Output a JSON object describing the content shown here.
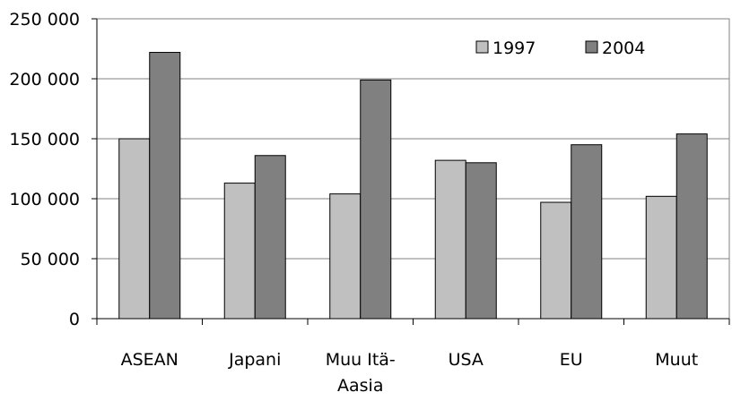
{
  "chart_data": {
    "type": "bar",
    "categories": [
      [
        "ASEAN"
      ],
      [
        "Japani"
      ],
      [
        "Muu Itä-",
        "Aasia"
      ],
      [
        "USA"
      ],
      [
        "EU"
      ],
      [
        "Muut"
      ]
    ],
    "series": [
      {
        "name": "1997",
        "values": [
          150000,
          113000,
          104000,
          132000,
          97000,
          102000
        ],
        "color": "#c0c0c0"
      },
      {
        "name": "2004",
        "values": [
          222000,
          136000,
          199000,
          130000,
          145000,
          154000
        ],
        "color": "#808080"
      }
    ],
    "yticks": [
      "0",
      "50 000",
      "100 000",
      "150 000",
      "200 000",
      "250 000"
    ],
    "ylim": [
      0,
      250000
    ],
    "grid": true,
    "legend_position": "top-right"
  }
}
